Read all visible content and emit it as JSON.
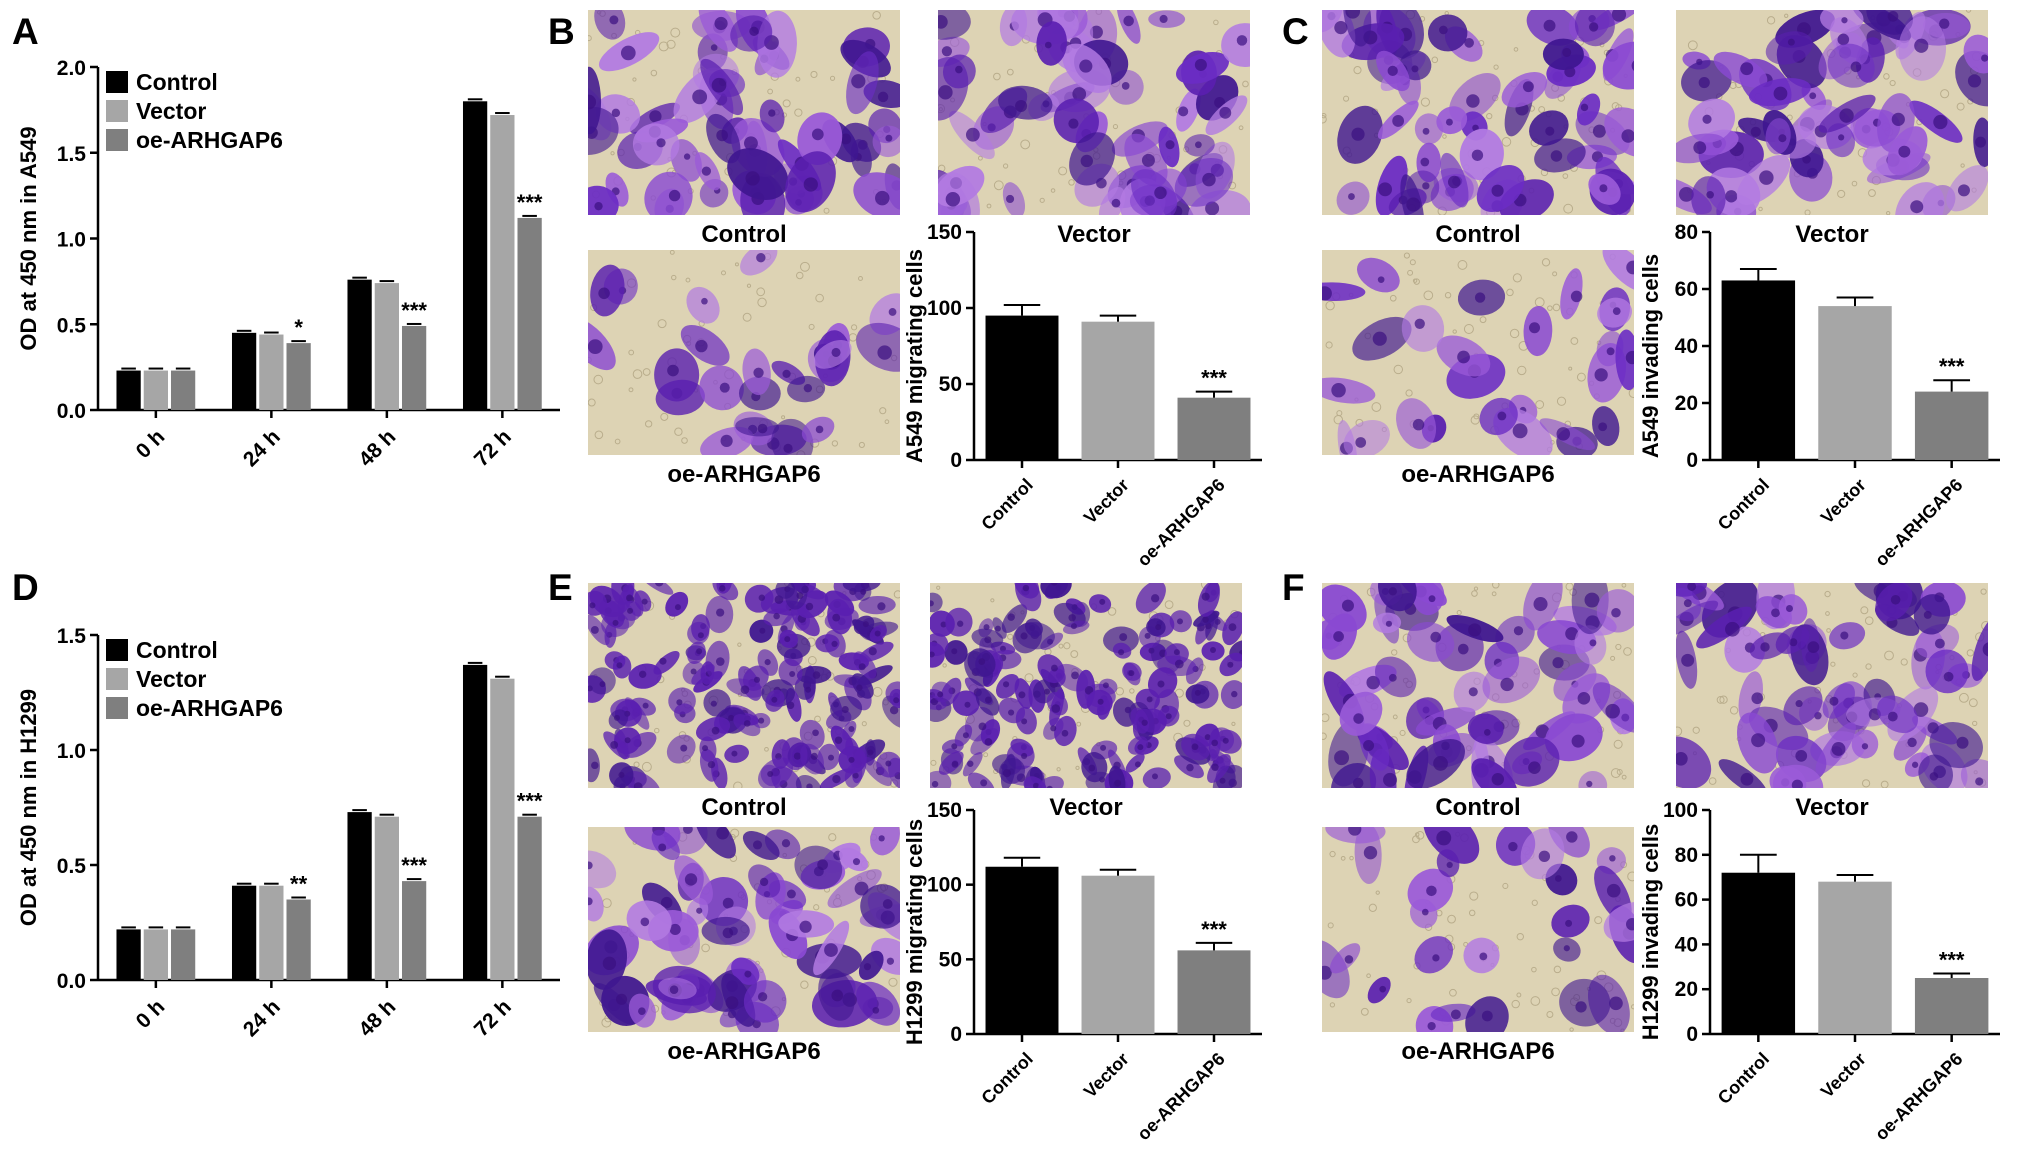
{
  "panel_letters": [
    "A",
    "B",
    "C",
    "D",
    "E",
    "F"
  ],
  "colors": {
    "control": "#000000",
    "vector": "#a6a6a6",
    "oe": "#7f7f7f",
    "stain_dark": "#5a1fb0",
    "stain_light": "#9a5ad8",
    "background_field": "#ddd3b4"
  },
  "chart_data": [
    {
      "panel": "A",
      "type": "bar",
      "ylabel": "OD at 450 nm in A549",
      "categories": [
        "0 h",
        "24 h",
        "48 h",
        "72 h"
      ],
      "ylim": [
        0,
        2.0
      ],
      "yticks": [
        "0.0",
        "0.5",
        "1.0",
        "1.5",
        "2.0"
      ],
      "legend": [
        "Control",
        "Vector",
        "oe-ARHGAP6"
      ],
      "legend_position": "top-left",
      "series": [
        {
          "name": "Control",
          "values": [
            0.23,
            0.45,
            0.76,
            1.8
          ]
        },
        {
          "name": "Vector",
          "values": [
            0.23,
            0.44,
            0.74,
            1.72
          ]
        },
        {
          "name": "oe-ARHGAP6",
          "values": [
            0.23,
            0.39,
            0.49,
            1.12
          ]
        }
      ],
      "annotations": [
        "",
        "*",
        "***",
        "***"
      ]
    },
    {
      "panel": "B",
      "type": "bar",
      "ylabel": "A549 migrating cells",
      "categories": [
        "Control",
        "Vector",
        "oe-ARHGAP6"
      ],
      "ylim": [
        0,
        150
      ],
      "yticks": [
        "0",
        "50",
        "100",
        "150"
      ],
      "values": [
        95,
        91,
        41
      ],
      "errors": [
        7,
        4,
        4
      ],
      "annotations": [
        "",
        "",
        "***"
      ],
      "image_captions": [
        "Control",
        "Vector",
        "oe-ARHGAP6"
      ]
    },
    {
      "panel": "C",
      "type": "bar",
      "ylabel": "A549 invading cells",
      "categories": [
        "Control",
        "Vector",
        "oe-ARHGAP6"
      ],
      "ylim": [
        0,
        80
      ],
      "yticks": [
        "0",
        "20",
        "40",
        "60",
        "80"
      ],
      "values": [
        63,
        54,
        24
      ],
      "errors": [
        4,
        3,
        4
      ],
      "annotations": [
        "",
        "",
        "***"
      ],
      "image_captions": [
        "Control",
        "Vector",
        "oe-ARHGAP6"
      ]
    },
    {
      "panel": "D",
      "type": "bar",
      "ylabel": "OD at 450 nm in H1299",
      "categories": [
        "0 h",
        "24 h",
        "48 h",
        "72 h"
      ],
      "ylim": [
        0,
        1.5
      ],
      "yticks": [
        "0.0",
        "0.5",
        "1.0",
        "1.5"
      ],
      "legend": [
        "Control",
        "Vector",
        "oe-ARHGAP6"
      ],
      "legend_position": "top-left",
      "series": [
        {
          "name": "Control",
          "values": [
            0.22,
            0.41,
            0.73,
            1.37
          ]
        },
        {
          "name": "Vector",
          "values": [
            0.22,
            0.41,
            0.71,
            1.31
          ]
        },
        {
          "name": "oe-ARHGAP6",
          "values": [
            0.22,
            0.35,
            0.43,
            0.71
          ]
        }
      ],
      "annotations": [
        "",
        "**",
        "***",
        "***"
      ]
    },
    {
      "panel": "E",
      "type": "bar",
      "ylabel": "H1299 migrating cells",
      "categories": [
        "Control",
        "Vector",
        "oe-ARHGAP6"
      ],
      "ylim": [
        0,
        150
      ],
      "yticks": [
        "0",
        "50",
        "100",
        "150"
      ],
      "values": [
        112,
        106,
        56
      ],
      "errors": [
        6,
        4,
        5
      ],
      "annotations": [
        "",
        "",
        "***"
      ],
      "image_captions": [
        "Control",
        "Vector",
        "oe-ARHGAP6"
      ]
    },
    {
      "panel": "F",
      "type": "bar",
      "ylabel": "H1299 invading cells",
      "categories": [
        "Control",
        "Vector",
        "oe-ARHGAP6"
      ],
      "ylim": [
        0,
        100
      ],
      "yticks": [
        "0",
        "20",
        "40",
        "60",
        "80",
        "100"
      ],
      "values": [
        72,
        68,
        25
      ],
      "errors": [
        8,
        3,
        2
      ],
      "annotations": [
        "",
        "",
        "***"
      ],
      "image_captions": [
        "Control",
        "Vector",
        "oe-ARHGAP6"
      ]
    }
  ]
}
